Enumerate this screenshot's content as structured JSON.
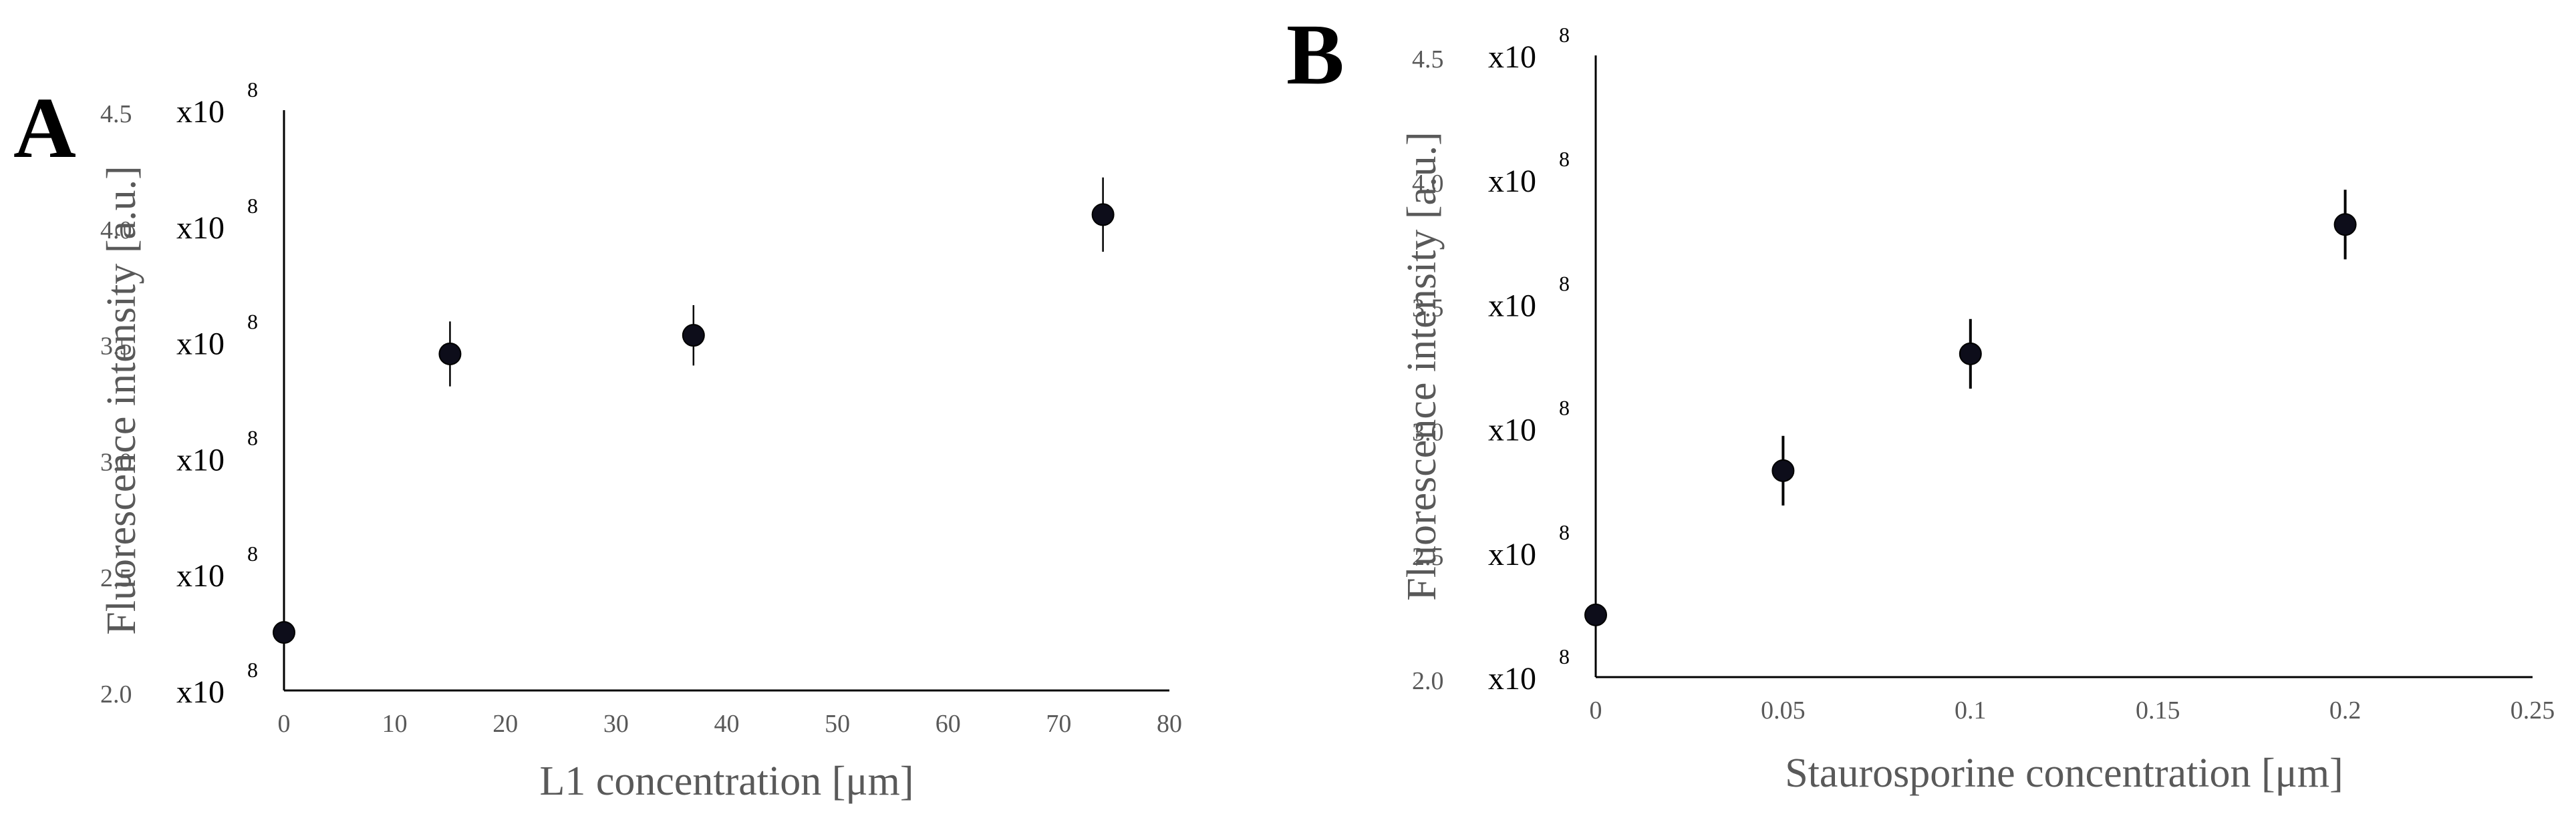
{
  "chart_data": [
    {
      "type": "scatter",
      "panel_label": "A",
      "xlabel": "L1 concentration [μm]",
      "ylabel": "Fluorescence intensity [a.u.]",
      "xlim": [
        0,
        80
      ],
      "ylim": [
        2.0,
        4.5
      ],
      "x_ticks": [
        "0",
        "10",
        "20",
        "30",
        "40",
        "50",
        "60",
        "70",
        "80"
      ],
      "y_ticks": [
        {
          "mantissa": "2.0",
          "multiplier": "x10",
          "exponent": "8"
        },
        {
          "mantissa": "2.5",
          "multiplier": "x10",
          "exponent": "8"
        },
        {
          "mantissa": "3.0",
          "multiplier": "x10",
          "exponent": "8"
        },
        {
          "mantissa": "3.5",
          "multiplier": "x10",
          "exponent": "8"
        },
        {
          "mantissa": "4.0",
          "multiplier": "x10",
          "exponent": "8"
        },
        {
          "mantissa": "4.5",
          "multiplier": "x10",
          "exponent": "8"
        }
      ],
      "y_unit_note": "values in units of 10^8 a.u.",
      "grid": false,
      "series": [
        {
          "x": [
            0,
            15,
            37,
            74
          ],
          "y": [
            2.25,
            3.45,
            3.53,
            4.05
          ],
          "error": [
            0.0,
            0.14,
            0.13,
            0.16
          ]
        }
      ]
    },
    {
      "type": "scatter",
      "panel_label": "B",
      "xlabel": "Staurosporine concentration [μm]",
      "ylabel": "Fluorescence intensity [a.u.]",
      "xlim": [
        0,
        0.25
      ],
      "ylim": [
        2.0,
        4.5
      ],
      "x_ticks": [
        "0",
        "0.05",
        "0.1",
        "0.15",
        "0.2",
        "0.25"
      ],
      "y_ticks": [
        {
          "mantissa": "2.0",
          "multiplier": "x10",
          "exponent": "8"
        },
        {
          "mantissa": "2.5",
          "multiplier": "x10",
          "exponent": "8"
        },
        {
          "mantissa": "3.0",
          "multiplier": "x10",
          "exponent": "8"
        },
        {
          "mantissa": "3.5",
          "multiplier": "x10",
          "exponent": "8"
        },
        {
          "mantissa": "4.0",
          "multiplier": "x10",
          "exponent": "8"
        },
        {
          "mantissa": "4.5",
          "multiplier": "x10",
          "exponent": "8"
        }
      ],
      "y_unit_note": "values in units of 10^8 a.u.",
      "grid": false,
      "series": [
        {
          "x": [
            0,
            0.05,
            0.1,
            0.2
          ],
          "y": [
            2.25,
            2.83,
            3.3,
            3.82
          ],
          "error": [
            0.0,
            0.14,
            0.14,
            0.14
          ]
        }
      ]
    }
  ]
}
